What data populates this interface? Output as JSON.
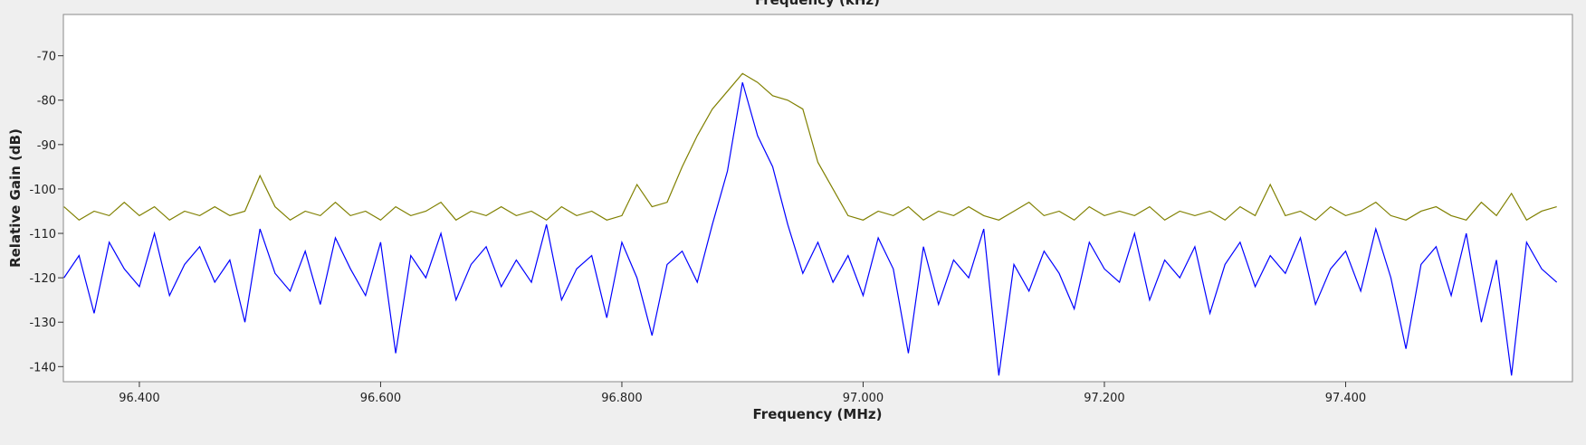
{
  "chart_data": {
    "type": "line",
    "top_axis_label": "Frequency (kHz)",
    "x_label": "Frequency (MHz)",
    "y_label": "Relative Gain (dB)",
    "x": [
      96.3375,
      96.35,
      96.3625,
      96.375,
      96.3875,
      96.4,
      96.4125,
      96.425,
      96.4375,
      96.45,
      96.4625,
      96.475,
      96.4875,
      96.5,
      96.5125,
      96.525,
      96.5375,
      96.55,
      96.5625,
      96.575,
      96.5875,
      96.6,
      96.6125,
      96.625,
      96.6375,
      96.65,
      96.6625,
      96.675,
      96.6875,
      96.7,
      96.7125,
      96.725,
      96.7375,
      96.75,
      96.7625,
      96.775,
      96.7875,
      96.8,
      96.8125,
      96.825,
      96.8375,
      96.85,
      96.8625,
      96.875,
      96.8875,
      96.9,
      96.9125,
      96.925,
      96.9375,
      96.95,
      96.9625,
      96.975,
      96.9875,
      97.0,
      97.0125,
      97.025,
      97.0375,
      97.05,
      97.0625,
      97.075,
      97.0875,
      97.1,
      97.1125,
      97.125,
      97.1375,
      97.15,
      97.1625,
      97.175,
      97.1875,
      97.2,
      97.2125,
      97.225,
      97.2375,
      97.25,
      97.2625,
      97.275,
      97.2875,
      97.3,
      97.3125,
      97.325,
      97.3375,
      97.35,
      97.3625,
      97.375,
      97.3875,
      97.4,
      97.4125,
      97.425,
      97.4375,
      97.45,
      97.4625,
      97.475,
      97.4875,
      97.5,
      97.5125,
      97.525,
      97.5375,
      97.55,
      97.5625,
      97.575
    ],
    "series": [
      {
        "color": "#808000",
        "values": [
          -104,
          -107,
          -105,
          -106,
          -103,
          -106,
          -104,
          -107,
          -105,
          -106,
          -104,
          -106,
          -105,
          -97,
          -104,
          -107,
          -105,
          -106,
          -103,
          -106,
          -105,
          -107,
          -104,
          -106,
          -105,
          -103,
          -107,
          -105,
          -106,
          -104,
          -106,
          -105,
          -107,
          -104,
          -106,
          -105,
          -107,
          -106,
          -99,
          -104,
          -103,
          -95,
          -88,
          -82,
          -78,
          -74,
          -76,
          -79,
          -80,
          -82,
          -94,
          -100,
          -106,
          -107,
          -105,
          -106,
          -104,
          -107,
          -105,
          -106,
          -104,
          -106,
          -107,
          -105,
          -103,
          -106,
          -105,
          -107,
          -104,
          -106,
          -105,
          -106,
          -104,
          -107,
          -105,
          -106,
          -105,
          -107,
          -104,
          -106,
          -99,
          -106,
          -105,
          -107,
          -104,
          -106,
          -105,
          -103,
          -106,
          -107,
          -105,
          -104,
          -106,
          -107,
          -103,
          -106,
          -101,
          -107,
          -105,
          -104
        ]
      },
      {
        "color": "#0000ff",
        "values": [
          -120,
          -115,
          -128,
          -112,
          -118,
          -122,
          -110,
          -124,
          -117,
          -113,
          -121,
          -116,
          -130,
          -109,
          -119,
          -123,
          -114,
          -126,
          -111,
          -118,
          -124,
          -112,
          -137,
          -115,
          -120,
          -110,
          -125,
          -117,
          -113,
          -122,
          -116,
          -121,
          -108,
          -125,
          -118,
          -115,
          -129,
          -112,
          -120,
          -133,
          -117,
          -114,
          -121,
          -108,
          -96,
          -76,
          -88,
          -95,
          -108,
          -119,
          -112,
          -121,
          -115,
          -124,
          -111,
          -118,
          -137,
          -113,
          -126,
          -116,
          -120,
          -109,
          -142,
          -117,
          -123,
          -114,
          -119,
          -127,
          -112,
          -118,
          -121,
          -110,
          -125,
          -116,
          -120,
          -113,
          -128,
          -117,
          -112,
          -122,
          -115,
          -119,
          -111,
          -126,
          -118,
          -114,
          -123,
          -109,
          -120,
          -136,
          -117,
          -113,
          -124,
          -110,
          -130,
          -116,
          -142,
          -112,
          -118,
          -121
        ]
      }
    ],
    "xlim": [
      96.337,
      97.588
    ],
    "ylim": [
      -143.4,
      -60.7
    ],
    "xticks": [
      {
        "value": 96.4,
        "label": "96.400"
      },
      {
        "value": 96.6,
        "label": "96.600"
      },
      {
        "value": 96.8,
        "label": "96.800"
      },
      {
        "value": 97.0,
        "label": "97.000"
      },
      {
        "value": 97.2,
        "label": "97.200"
      },
      {
        "value": 97.4,
        "label": "97.400"
      }
    ],
    "yticks": [
      -70,
      -80,
      -90,
      -100,
      -110,
      -120,
      -130,
      -140
    ]
  }
}
